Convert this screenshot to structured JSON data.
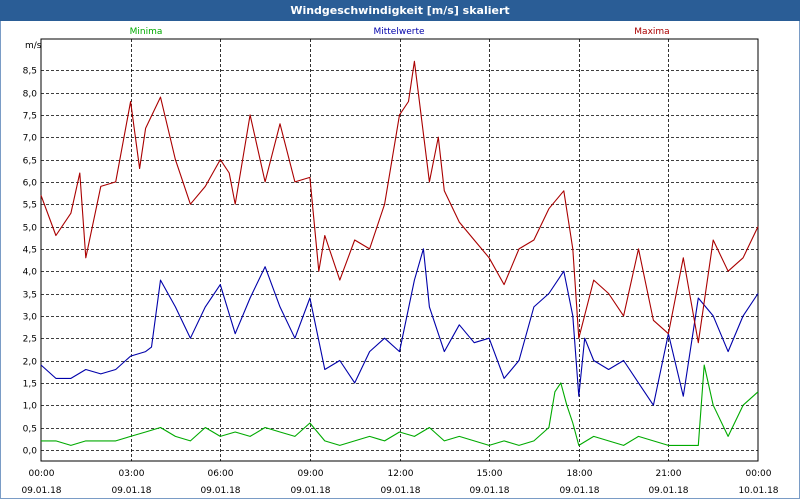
{
  "window": {
    "title": "Windgeschwindigkeit [m/s] skaliert"
  },
  "chart_data": {
    "type": "line",
    "title": "Windgeschwindigkeit [m/s] skaliert",
    "ylabel": "m/s",
    "ylim": [
      -0.25,
      9.2
    ],
    "yticks": [
      0.0,
      0.5,
      1.0,
      1.5,
      2.0,
      2.5,
      3.0,
      3.5,
      4.0,
      4.5,
      5.0,
      5.5,
      6.0,
      6.5,
      7.0,
      7.5,
      8.0,
      8.5
    ],
    "ytick_labels": [
      "0,0",
      "0,5",
      "1,0",
      "1,5",
      "2,0",
      "2,5",
      "3,0",
      "3,5",
      "4,0",
      "4,5",
      "5,0",
      "5,5",
      "6,0",
      "6,5",
      "7,0",
      "7,5",
      "8,0",
      "8,5"
    ],
    "xlim": [
      0,
      24
    ],
    "xticks": [
      0,
      3,
      6,
      9,
      12,
      15,
      18,
      21,
      24
    ],
    "xtick_labels": [
      [
        "00:00",
        "09.01.18"
      ],
      [
        "03:00",
        "09.01.18"
      ],
      [
        "06:00",
        "09.01.18"
      ],
      [
        "09:00",
        "09.01.18"
      ],
      [
        "12:00",
        "09.01.18"
      ],
      [
        "15:00",
        "09.01.18"
      ],
      [
        "18:00",
        "09.01.18"
      ],
      [
        "21:00",
        "09.01.18"
      ],
      [
        "00:00",
        "10.01.18"
      ]
    ],
    "grid": true,
    "legend_position": "top",
    "series": [
      {
        "name": "Minima",
        "color": "#00aa00",
        "x": [
          0,
          0.5,
          1,
          1.5,
          2,
          2.5,
          3,
          3.5,
          4,
          4.5,
          5,
          5.5,
          6,
          6.5,
          7,
          7.5,
          8,
          8.5,
          9,
          9.5,
          10,
          10.5,
          11,
          11.5,
          12,
          12.5,
          13,
          13.5,
          14,
          14.5,
          15,
          15.5,
          16,
          16.5,
          17,
          17.2,
          17.4,
          17.6,
          17.8,
          18,
          18.5,
          19,
          19.5,
          20,
          20.5,
          21,
          21.5,
          22,
          22.2,
          22.5,
          23,
          23.5,
          24
        ],
        "y": [
          0.2,
          0.2,
          0.1,
          0.2,
          0.2,
          0.2,
          0.3,
          0.4,
          0.5,
          0.3,
          0.2,
          0.5,
          0.3,
          0.4,
          0.3,
          0.5,
          0.4,
          0.3,
          0.6,
          0.2,
          0.1,
          0.2,
          0.3,
          0.2,
          0.4,
          0.3,
          0.5,
          0.2,
          0.3,
          0.2,
          0.1,
          0.2,
          0.1,
          0.2,
          0.5,
          1.3,
          1.5,
          1.0,
          0.6,
          0.1,
          0.3,
          0.2,
          0.1,
          0.3,
          0.2,
          0.1,
          0.1,
          0.1,
          1.9,
          1.0,
          0.3,
          1.0,
          1.3
        ]
      },
      {
        "name": "Mittelwerte",
        "color": "#0000aa",
        "x": [
          0,
          0.5,
          1,
          1.5,
          2,
          2.5,
          3,
          3.5,
          3.7,
          4,
          4.5,
          5,
          5.5,
          6,
          6.5,
          7,
          7.5,
          8,
          8.5,
          9,
          9.5,
          10,
          10.5,
          11,
          11.5,
          12,
          12.5,
          12.8,
          13,
          13.5,
          14,
          14.5,
          15,
          15.5,
          16,
          16.5,
          17,
          17.5,
          17.8,
          18,
          18.2,
          18.5,
          19,
          19.5,
          20,
          20.5,
          21,
          21.5,
          22,
          22.5,
          23,
          23.5,
          24
        ],
        "y": [
          1.9,
          1.6,
          1.6,
          1.8,
          1.7,
          1.8,
          2.1,
          2.2,
          2.3,
          3.8,
          3.2,
          2.5,
          3.2,
          3.7,
          2.6,
          3.4,
          4.1,
          3.2,
          2.5,
          3.4,
          1.8,
          2.0,
          1.5,
          2.2,
          2.5,
          2.2,
          3.8,
          4.5,
          3.2,
          2.2,
          2.8,
          2.4,
          2.5,
          1.6,
          2.0,
          3.2,
          3.5,
          4.0,
          3.0,
          1.2,
          2.5,
          2.0,
          1.8,
          2.0,
          1.5,
          1.0,
          2.6,
          1.2,
          3.4,
          3.0,
          2.2,
          3.0,
          3.5
        ]
      },
      {
        "name": "Maxima",
        "color": "#aa0000",
        "x": [
          0,
          0.5,
          1,
          1.3,
          1.5,
          2,
          2.5,
          3,
          3.3,
          3.5,
          4,
          4.5,
          5,
          5.5,
          6,
          6.3,
          6.5,
          7,
          7.5,
          8,
          8.5,
          9,
          9.3,
          9.5,
          10,
          10.5,
          11,
          11.5,
          12,
          12.3,
          12.5,
          13,
          13.3,
          13.5,
          14,
          14.5,
          15,
          15.5,
          16,
          16.5,
          17,
          17.5,
          17.8,
          18,
          18.5,
          19,
          19.5,
          20,
          20.5,
          21,
          21.5,
          22,
          22.5,
          23,
          23.5,
          24
        ],
        "y": [
          5.7,
          4.8,
          5.3,
          6.2,
          4.3,
          5.9,
          6.0,
          7.8,
          6.3,
          7.2,
          7.9,
          6.5,
          5.5,
          5.9,
          6.5,
          6.2,
          5.5,
          7.5,
          6.0,
          7.3,
          6.0,
          6.1,
          4.0,
          4.8,
          3.8,
          4.7,
          4.5,
          5.5,
          7.5,
          7.8,
          8.7,
          6.0,
          7.0,
          5.8,
          5.1,
          4.7,
          4.3,
          3.7,
          4.5,
          4.7,
          5.4,
          5.8,
          4.5,
          2.5,
          3.8,
          3.5,
          3.0,
          4.5,
          2.9,
          2.6,
          4.3,
          2.4,
          4.7,
          4.0,
          4.3,
          5.0
        ]
      }
    ]
  }
}
